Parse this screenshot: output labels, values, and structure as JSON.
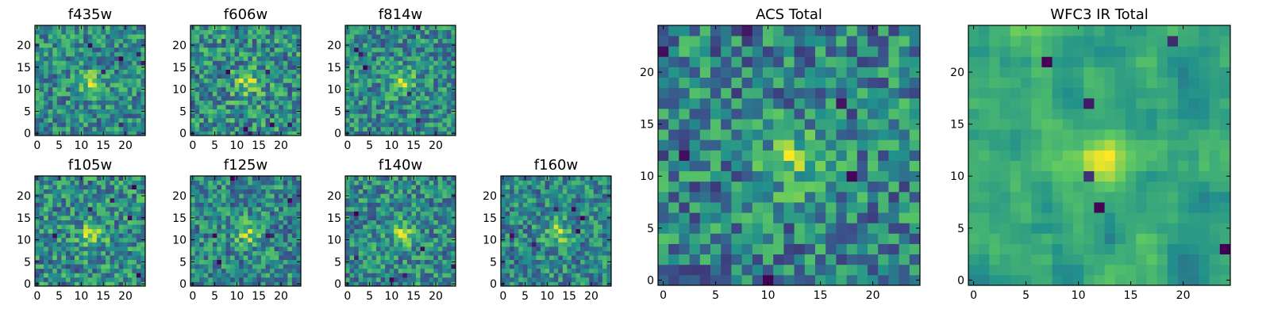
{
  "figure": {
    "colormap": "viridis",
    "colors": [
      "#440154",
      "#3b528b",
      "#21918c",
      "#5ec962",
      "#fde725"
    ]
  },
  "chart_data": [
    {
      "type": "heatmap",
      "title": "f435w",
      "grid_size": 25,
      "xlim": [
        0,
        24
      ],
      "ylim": [
        0,
        24
      ],
      "xticks": [
        0,
        5,
        10,
        15,
        20
      ],
      "yticks": [
        0,
        5,
        10,
        15,
        20
      ],
      "grid": false,
      "pattern": "noise",
      "seed": 11
    },
    {
      "type": "heatmap",
      "title": "f606w",
      "grid_size": 25,
      "xlim": [
        0,
        24
      ],
      "ylim": [
        0,
        24
      ],
      "xticks": [
        0,
        5,
        10,
        15,
        20
      ],
      "yticks": [
        0,
        5,
        10,
        15,
        20
      ],
      "grid": false,
      "pattern": "noise",
      "seed": 23
    },
    {
      "type": "heatmap",
      "title": "f814w",
      "grid_size": 25,
      "xlim": [
        0,
        24
      ],
      "ylim": [
        0,
        24
      ],
      "xticks": [
        0,
        5,
        10,
        15,
        20
      ],
      "yticks": [
        0,
        5,
        10,
        15,
        20
      ],
      "grid": false,
      "pattern": "noise",
      "seed": 37
    },
    {
      "type": "heatmap",
      "title": "f105w",
      "grid_size": 25,
      "xlim": [
        0,
        24
      ],
      "ylim": [
        0,
        24
      ],
      "xticks": [
        0,
        5,
        10,
        15,
        20
      ],
      "yticks": [
        0,
        5,
        10,
        15,
        20
      ],
      "grid": false,
      "pattern": "noise",
      "seed": 41
    },
    {
      "type": "heatmap",
      "title": "f125w",
      "grid_size": 25,
      "xlim": [
        0,
        24
      ],
      "ylim": [
        0,
        24
      ],
      "xticks": [
        0,
        5,
        10,
        15,
        20
      ],
      "yticks": [
        0,
        5,
        10,
        15,
        20
      ],
      "grid": false,
      "pattern": "noise",
      "seed": 53
    },
    {
      "type": "heatmap",
      "title": "f140w",
      "grid_size": 25,
      "xlim": [
        0,
        24
      ],
      "ylim": [
        0,
        24
      ],
      "xticks": [
        0,
        5,
        10,
        15,
        20
      ],
      "yticks": [
        0,
        5,
        10,
        15,
        20
      ],
      "grid": false,
      "pattern": "noise",
      "seed": 67
    },
    {
      "type": "heatmap",
      "title": "f160w",
      "grid_size": 25,
      "xlim": [
        0,
        24
      ],
      "ylim": [
        0,
        24
      ],
      "xticks": [
        0,
        5,
        10,
        15,
        20
      ],
      "yticks": [
        0,
        5,
        10,
        15,
        20
      ],
      "grid": false,
      "pattern": "noise",
      "seed": 79
    },
    {
      "type": "heatmap",
      "title": "ACS Total",
      "grid_size": 25,
      "xlim": [
        0,
        24
      ],
      "ylim": [
        0,
        24
      ],
      "xticks": [
        0,
        5,
        10,
        15,
        20
      ],
      "yticks": [
        0,
        5,
        10,
        15,
        20
      ],
      "grid": false,
      "pattern": "noise",
      "seed": 97
    },
    {
      "type": "heatmap",
      "title": "WFC3 IR Total",
      "grid_size": 25,
      "xlim": [
        0,
        24
      ],
      "ylim": [
        0,
        24
      ],
      "xticks": [
        0,
        5,
        10,
        15,
        20
      ],
      "yticks": [
        0,
        5,
        10,
        15,
        20
      ],
      "grid": false,
      "pattern": "smooth",
      "seed": 131
    }
  ]
}
